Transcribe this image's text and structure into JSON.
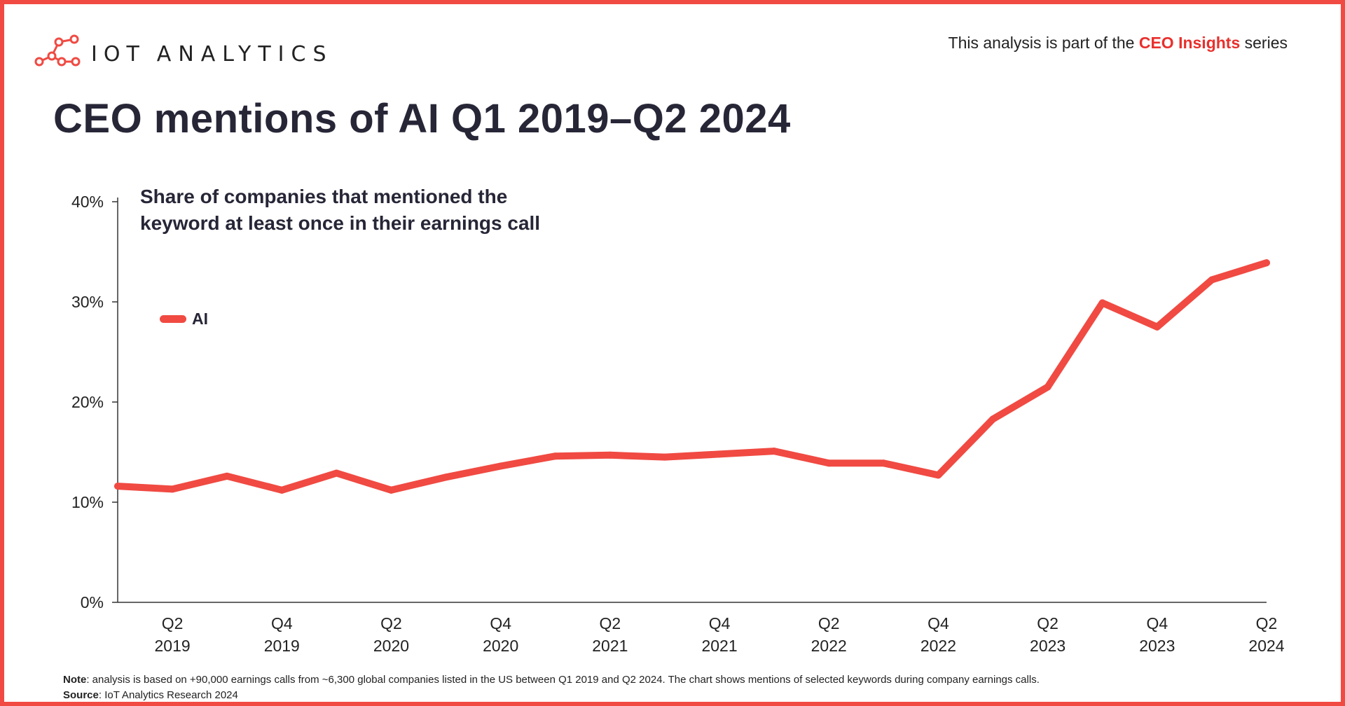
{
  "brand": {
    "logo_word_1": "IOT",
    "logo_word_2": "ANALYTICS"
  },
  "header": {
    "series_prefix": "This analysis is part of the ",
    "series_highlight": "CEO Insights",
    "series_suffix": " series",
    "title": "CEO mentions of AI Q1 2019–Q2 2024"
  },
  "colors": {
    "accent": "#f04a42",
    "line": "#f04a42",
    "title": "#262637",
    "highlight": "#e8302c"
  },
  "chart_data": {
    "type": "line",
    "title": "CEO mentions of AI Q1 2019–Q2 2024",
    "subtitle": "Share of companies that mentioned the keyword at least once in their earnings call",
    "xlabel": "",
    "ylabel": "",
    "ylim": [
      0,
      40
    ],
    "yticks": [
      0,
      10,
      20,
      30,
      40
    ],
    "ytick_labels": [
      "0%",
      "10%",
      "20%",
      "30%",
      "40%"
    ],
    "categories": [
      "Q1 2019",
      "Q2 2019",
      "Q3 2019",
      "Q4 2019",
      "Q1 2020",
      "Q2 2020",
      "Q3 2020",
      "Q4 2020",
      "Q1 2021",
      "Q2 2021",
      "Q3 2021",
      "Q4 2021",
      "Q1 2022",
      "Q2 2022",
      "Q3 2022",
      "Q4 2022",
      "Q1 2023",
      "Q2 2023",
      "Q3 2023",
      "Q4 2023",
      "Q1 2024",
      "Q2 2024"
    ],
    "xtick_labels": [
      {
        "index": 1,
        "line1": "Q2",
        "line2": "2019"
      },
      {
        "index": 3,
        "line1": "Q4",
        "line2": "2019"
      },
      {
        "index": 5,
        "line1": "Q2",
        "line2": "2020"
      },
      {
        "index": 7,
        "line1": "Q4",
        "line2": "2020"
      },
      {
        "index": 9,
        "line1": "Q2",
        "line2": "2021"
      },
      {
        "index": 11,
        "line1": "Q4",
        "line2": "2021"
      },
      {
        "index": 13,
        "line1": "Q2",
        "line2": "2022"
      },
      {
        "index": 15,
        "line1": "Q4",
        "line2": "2022"
      },
      {
        "index": 17,
        "line1": "Q2",
        "line2": "2023"
      },
      {
        "index": 19,
        "line1": "Q4",
        "line2": "2023"
      },
      {
        "index": 21,
        "line1": "Q2",
        "line2": "2024"
      }
    ],
    "series": [
      {
        "name": "AI",
        "values": [
          11.6,
          11.3,
          12.6,
          11.2,
          12.9,
          11.2,
          12.5,
          13.6,
          14.6,
          14.7,
          14.5,
          14.8,
          15.1,
          13.9,
          13.9,
          12.7,
          18.3,
          21.5,
          29.9,
          27.5,
          32.2,
          33.9
        ]
      }
    ],
    "legend": "top-left",
    "grid": false
  },
  "footnote": {
    "note_label": "Note",
    "note_text": ": analysis is based on +90,000 earnings calls from ~6,300 global companies listed in the US between Q1 2019 and Q2 2024. The chart shows mentions of selected keywords during company earnings calls.",
    "source_label": "Source",
    "source_text": ": IoT Analytics Research 2024"
  }
}
